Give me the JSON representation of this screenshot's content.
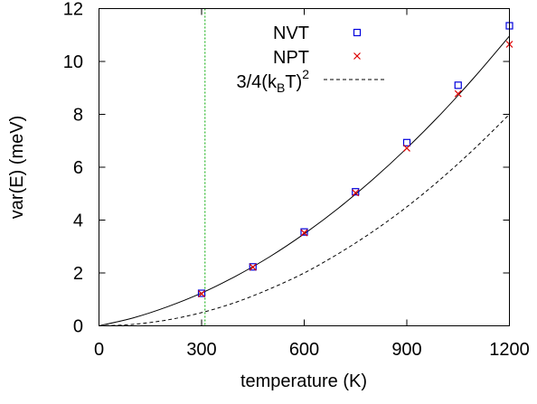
{
  "chart_data": {
    "type": "scatter",
    "xlabel": "temperature (K)",
    "ylabel": "var(E) (meV)",
    "xlim": [
      0,
      1200
    ],
    "ylim": [
      0,
      12
    ],
    "xticks": [
      "0",
      "300",
      "600",
      "900",
      "1200"
    ],
    "yticks": [
      "0",
      "2",
      "4",
      "6",
      "8",
      "10",
      "12"
    ],
    "grid": false,
    "legend_position": "top-right",
    "legend_labels": {
      "nvt": "NVT",
      "npt": "NPT",
      "ref_base": "3/4(k",
      "ref_sub": "B",
      "ref_mid": "T)",
      "ref_sup": "2"
    },
    "series": [
      {
        "name": "NVT",
        "marker": "open-square",
        "color": "#0000dd",
        "x": [
          300,
          450,
          600,
          750,
          900,
          1050,
          1200
        ],
        "y": [
          1.23,
          2.23,
          3.55,
          5.07,
          6.93,
          9.1,
          11.35
        ]
      },
      {
        "name": "NPT",
        "marker": "cross",
        "color": "#dd0000",
        "x": [
          300,
          450,
          600,
          750,
          900,
          1050,
          1200
        ],
        "y": [
          1.21,
          2.22,
          3.52,
          5.03,
          6.72,
          8.78,
          10.65
        ]
      },
      {
        "name": "fit",
        "style": "solid",
        "color": "#000000",
        "x": [
          0,
          100,
          200,
          300,
          400,
          500,
          600,
          700,
          800,
          900,
          1000,
          1100,
          1200
        ],
        "y": [
          0,
          0.3,
          0.72,
          1.24,
          1.88,
          2.62,
          3.48,
          4.45,
          5.53,
          6.72,
          8.02,
          9.44,
          10.96
        ]
      },
      {
        "name": "3/4(kBT)^2",
        "style": "dashed",
        "color": "#000000",
        "x": [
          0,
          100,
          200,
          300,
          400,
          500,
          600,
          700,
          800,
          900,
          1000,
          1100,
          1200
        ],
        "y": [
          0,
          0.056,
          0.223,
          0.5,
          0.89,
          1.4,
          2.0,
          2.73,
          3.56,
          4.5,
          5.56,
          6.73,
          8.0
        ]
      }
    ],
    "vertical_line": {
      "x": 310,
      "style": "dotted",
      "color": "#00aa00"
    }
  }
}
